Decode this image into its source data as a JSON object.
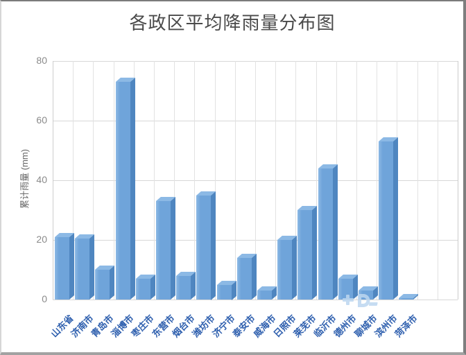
{
  "title": "各政区平均降雨量分布图",
  "chart_data": {
    "type": "bar",
    "style": "3d-bar",
    "title": "各政区平均降雨量分布图",
    "xlabel": "",
    "ylabel": "累计雨量 (mm)",
    "ylim": [
      0,
      80
    ],
    "yticks": [
      0,
      20,
      40,
      60,
      80
    ],
    "grid": true,
    "legend": "none",
    "categories": [
      "山东省",
      "济南市",
      "青岛市",
      "淄博市",
      "枣庄市",
      "东营市",
      "烟台市",
      "潍坊市",
      "济宁市",
      "泰安市",
      "威海市",
      "日照市",
      "莱芜市",
      "临沂市",
      "德州市",
      "聊城市",
      "滨州市",
      "菏泽市"
    ],
    "values": [
      21,
      20.5,
      10,
      73,
      7,
      33,
      8,
      35,
      5,
      14,
      3,
      20,
      30,
      44,
      7,
      3,
      53,
      0.5
    ]
  },
  "colors": {
    "bar_front": "#6fa4da",
    "bar_side": "#4f86c0",
    "bar_top": "#8cb9e5",
    "x_label": "#2e5fae",
    "y_label": "#8a8a8a",
    "title": "#4a4a4a",
    "grid": "#d7d7d7",
    "background": "#ffffff",
    "watermark": "#bdd7f0"
  }
}
